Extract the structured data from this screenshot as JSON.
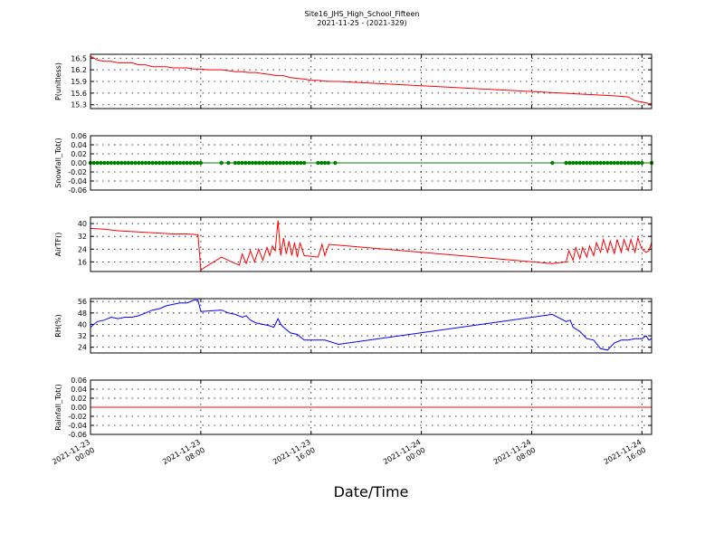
{
  "figure": {
    "title": "Site16_JHS_High_School_Fifteen",
    "subtitle": "2021-11-25 - (2021-329)",
    "xlabel": "Date/Time"
  },
  "x_ticks": [
    {
      "line1": "2021-11-23",
      "line2": "00:00",
      "hour": 0
    },
    {
      "line1": "2021-11-23",
      "line2": "08:00",
      "hour": 8
    },
    {
      "line1": "2021-11-23",
      "line2": "16:00",
      "hour": 16
    },
    {
      "line1": "2021-11-24",
      "line2": "00:00",
      "hour": 24
    },
    {
      "line1": "2021-11-24",
      "line2": "08:00",
      "hour": 32
    },
    {
      "line1": "2021-11-24",
      "line2": "16:00",
      "hour": 40
    }
  ],
  "chart_data": [
    {
      "type": "line",
      "ylabel": "P(unitless)",
      "color": "#ff0000",
      "xlim_hours": [
        0,
        40.7
      ],
      "ylim": [
        15.2,
        16.6
      ],
      "yticks": [
        15.3,
        15.6,
        15.9,
        16.2,
        16.5
      ],
      "ytick_labels": [
        "15.3",
        "15.6",
        "15.9",
        "16.2",
        "16.5"
      ],
      "grid": true,
      "x_hours": [
        0,
        0.5,
        1,
        1.5,
        2,
        2.5,
        3,
        3.5,
        4,
        4.5,
        5,
        5.5,
        6,
        6.5,
        7,
        7.5,
        8,
        8.5,
        9,
        9.5,
        10,
        10.5,
        11,
        11.5,
        12,
        12.5,
        13,
        13.5,
        14,
        14.5,
        15,
        15.5,
        16,
        16.5,
        17,
        17.5,
        18,
        38,
        39,
        39.5,
        40,
        40.5,
        40.7
      ],
      "y": [
        16.55,
        16.45,
        16.42,
        16.42,
        16.38,
        16.38,
        16.38,
        16.33,
        16.33,
        16.28,
        16.28,
        16.28,
        16.25,
        16.25,
        16.25,
        16.22,
        16.22,
        16.2,
        16.2,
        16.2,
        16.18,
        16.15,
        16.15,
        16.13,
        16.13,
        16.1,
        16.08,
        16.05,
        16.05,
        16.0,
        15.98,
        15.96,
        15.93,
        15.93,
        15.91,
        15.9,
        15.9,
        15.53,
        15.5,
        15.4,
        15.37,
        15.33,
        15.33
      ]
    },
    {
      "type": "scatter",
      "ylabel": "Snowfall_Tot()",
      "color": "#008000",
      "xlim_hours": [
        0,
        40.7
      ],
      "ylim": [
        -0.06,
        0.06
      ],
      "yticks": [
        -0.06,
        -0.04,
        -0.02,
        0.0,
        0.02,
        0.04,
        0.06
      ],
      "ytick_labels": [
        "-0.06",
        "-0.04",
        "-0.02",
        "0.00",
        "0.02",
        "0.04",
        "0.06"
      ],
      "grid": true,
      "x_hours": [
        0,
        0.25,
        0.5,
        0.75,
        1,
        1.25,
        1.5,
        1.75,
        2,
        2.25,
        2.5,
        2.75,
        3,
        3.25,
        3.5,
        3.75,
        4,
        4.25,
        4.5,
        4.75,
        5,
        5.25,
        5.5,
        5.75,
        6,
        6.25,
        6.5,
        6.75,
        7,
        7.25,
        7.5,
        7.75,
        8,
        9.5,
        10,
        10.5,
        10.75,
        11,
        11.25,
        11.5,
        11.75,
        12,
        12.25,
        12.5,
        12.75,
        13,
        13.25,
        13.5,
        13.75,
        14,
        14.25,
        14.5,
        14.75,
        15,
        15.25,
        15.5,
        16.5,
        16.75,
        17,
        17.25,
        17.75,
        33.5,
        34.5,
        34.75,
        35,
        35.25,
        35.5,
        35.75,
        36,
        36.25,
        36.5,
        36.75,
        37,
        37.25,
        37.5,
        37.75,
        38,
        38.25,
        38.5,
        38.75,
        39,
        39.25,
        39.5,
        39.75,
        40,
        40.7
      ],
      "y_value": 0.0
    },
    {
      "type": "line",
      "ylabel": "AirTF()",
      "color": "#ff0000",
      "xlim_hours": [
        0,
        40.7
      ],
      "ylim": [
        10,
        44
      ],
      "yticks": [
        16,
        24,
        32,
        40
      ],
      "ytick_labels": [
        "16",
        "24",
        "32",
        "40"
      ],
      "grid": true,
      "x_hours": [
        0,
        1,
        2,
        3,
        4,
        5,
        6,
        7,
        7.8,
        8.0,
        9.5,
        10.5,
        10.8,
        11.0,
        11.3,
        11.6,
        11.9,
        12.2,
        12.5,
        12.8,
        13.0,
        13.2,
        13.4,
        13.6,
        13.8,
        14.0,
        14.2,
        14.4,
        14.6,
        14.8,
        15.0,
        15.2,
        15.5,
        16.5,
        16.8,
        17.0,
        17.3,
        33.5,
        34.5,
        34.7,
        35.0,
        35.2,
        35.5,
        35.7,
        36.0,
        36.2,
        36.5,
        36.7,
        37.0,
        37.2,
        37.5,
        37.7,
        38.0,
        38.2,
        38.5,
        38.7,
        39.0,
        39.2,
        39.5,
        39.7,
        40.0,
        40.3,
        40.5,
        40.7
      ],
      "y": [
        37,
        36.5,
        35.5,
        35,
        34.5,
        34,
        33.5,
        33.5,
        33,
        11,
        19,
        15,
        14,
        21,
        15,
        23,
        16,
        24,
        17,
        25,
        20,
        26,
        23,
        42,
        20,
        31,
        21,
        29,
        20,
        28,
        19,
        28,
        20,
        19,
        27,
        20,
        27,
        15,
        16,
        23,
        17,
        25,
        18,
        25,
        19,
        26,
        20,
        28,
        22,
        30,
        22,
        29,
        21,
        30,
        22,
        30,
        23,
        30,
        22,
        31,
        24,
        22,
        23,
        28
      ]
    },
    {
      "type": "line",
      "ylabel": "RH(%)",
      "color": "#0000ff",
      "xlim_hours": [
        0,
        40.7
      ],
      "ylim": [
        20,
        58
      ],
      "yticks": [
        24,
        32,
        40,
        48,
        56
      ],
      "ytick_labels": [
        "24",
        "32",
        "40",
        "48",
        "56"
      ],
      "grid": true,
      "x_hours": [
        0,
        0.5,
        1,
        1.5,
        2,
        2.5,
        3,
        3.5,
        4,
        4.5,
        5,
        5.5,
        6,
        6.5,
        7,
        7.5,
        7.8,
        8.0,
        9.5,
        10.0,
        10.5,
        11.0,
        11.3,
        11.6,
        12.0,
        12.5,
        13.0,
        13.3,
        13.6,
        13.8,
        14.0,
        14.5,
        15.0,
        15.5,
        16.0,
        16.5,
        17.0,
        18.0,
        33.5,
        34.5,
        34.8,
        35.0,
        35.5,
        36.0,
        36.5,
        37.0,
        37.5,
        38.0,
        38.5,
        39.0,
        39.5,
        40.0,
        40.3,
        40.5,
        40.7
      ],
      "y": [
        38,
        42,
        43,
        45,
        44,
        45,
        45,
        46,
        48,
        50,
        51,
        53,
        54,
        55,
        55,
        57,
        57,
        49,
        50,
        48,
        47,
        45,
        46,
        43,
        41,
        40,
        39,
        38,
        44,
        40,
        38,
        34,
        33,
        29,
        29,
        29,
        29,
        26,
        47,
        42,
        43,
        38,
        35,
        30,
        29,
        23,
        22,
        27,
        29,
        29,
        30,
        30,
        32,
        29,
        30
      ]
    },
    {
      "type": "line",
      "ylabel": "Rainfall_Tot()",
      "color": "#ff0000",
      "xlim_hours": [
        0,
        40.7
      ],
      "ylim": [
        -0.06,
        0.06
      ],
      "yticks": [
        -0.06,
        -0.04,
        -0.02,
        0.0,
        0.02,
        0.04,
        0.06
      ],
      "ytick_labels": [
        "-0.06",
        "-0.04",
        "-0.02",
        "0.00",
        "0.02",
        "0.04",
        "0.06"
      ],
      "grid": true,
      "x_hours": [
        0,
        40.7
      ],
      "y": [
        0.0,
        0.0
      ]
    }
  ]
}
